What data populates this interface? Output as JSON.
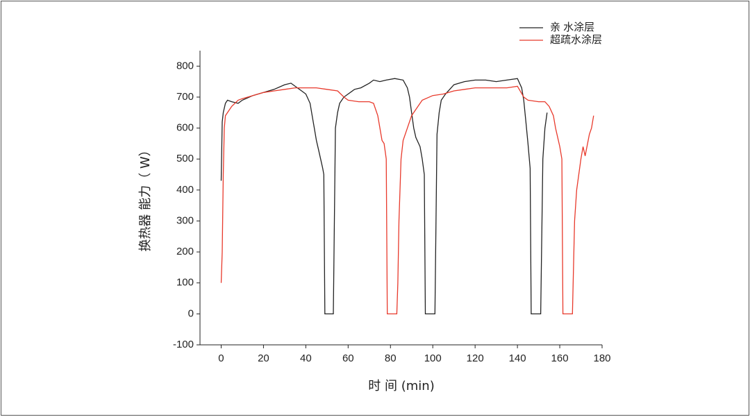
{
  "chart_data": {
    "type": "line",
    "xlabel": "时 间 (min)",
    "ylabel": "换热器 能力（ W）",
    "xlim": [
      -10,
      180
    ],
    "xticks": [
      0,
      20,
      40,
      60,
      80,
      100,
      120,
      140,
      160,
      180
    ],
    "ylim": [
      -100,
      850
    ],
    "yticks": [
      -100,
      0,
      100,
      200,
      300,
      400,
      500,
      600,
      700,
      800
    ],
    "legend": "upper right",
    "series": [
      {
        "name": "亲 水涂层",
        "color": "#222222",
        "x": [
          0,
          0.5,
          1,
          2,
          3,
          5,
          8,
          10,
          15,
          20,
          25,
          30,
          33,
          36,
          38,
          40,
          42,
          43,
          44,
          45,
          46,
          47,
          48,
          48.5,
          49,
          53,
          54,
          55,
          56,
          58,
          60,
          63,
          66,
          70,
          72,
          75,
          78,
          82,
          86,
          88,
          89,
          90,
          91,
          92,
          94,
          95,
          96,
          96.5,
          101,
          102,
          103,
          104,
          106,
          110,
          115,
          120,
          125,
          130,
          135,
          140,
          142,
          143,
          144,
          145,
          146,
          146.5,
          151,
          152,
          153,
          154
        ],
        "values": [
          430,
          620,
          650,
          680,
          690,
          685,
          680,
          690,
          705,
          715,
          725,
          740,
          745,
          730,
          720,
          710,
          680,
          640,
          600,
          560,
          530,
          500,
          470,
          450,
          0,
          0,
          600,
          650,
          680,
          700,
          710,
          725,
          730,
          745,
          755,
          750,
          755,
          760,
          755,
          730,
          700,
          650,
          600,
          570,
          540,
          500,
          450,
          0,
          0,
          580,
          650,
          690,
          710,
          740,
          750,
          755,
          755,
          750,
          755,
          760,
          730,
          690,
          620,
          550,
          470,
          0,
          0,
          500,
          600,
          650
        ]
      },
      {
        "name": "超疏水涂层",
        "color": "#e8392b",
        "x": [
          0,
          0.5,
          1,
          1.5,
          2,
          3,
          5,
          8,
          10,
          15,
          20,
          25,
          30,
          35,
          40,
          45,
          50,
          55,
          58,
          60,
          65,
          70,
          72,
          74,
          76,
          77,
          78,
          78.5,
          83,
          83.5,
          84,
          85,
          86,
          88,
          90,
          93,
          95,
          100,
          105,
          110,
          115,
          120,
          125,
          130,
          135,
          140,
          143,
          145,
          150,
          153,
          155,
          157,
          158,
          160,
          161,
          161.5,
          166,
          167,
          168,
          170,
          171,
          172,
          174,
          175,
          176
        ],
        "values": [
          100,
          200,
          450,
          600,
          640,
          650,
          670,
          690,
          695,
          705,
          715,
          720,
          725,
          730,
          730,
          730,
          725,
          720,
          700,
          690,
          685,
          685,
          680,
          640,
          560,
          550,
          500,
          0,
          0,
          100,
          300,
          500,
          560,
          600,
          640,
          670,
          690,
          705,
          710,
          720,
          725,
          730,
          730,
          730,
          730,
          735,
          700,
          690,
          685,
          685,
          670,
          640,
          600,
          540,
          500,
          0,
          0,
          300,
          400,
          500,
          540,
          510,
          580,
          600,
          640
        ]
      }
    ]
  }
}
